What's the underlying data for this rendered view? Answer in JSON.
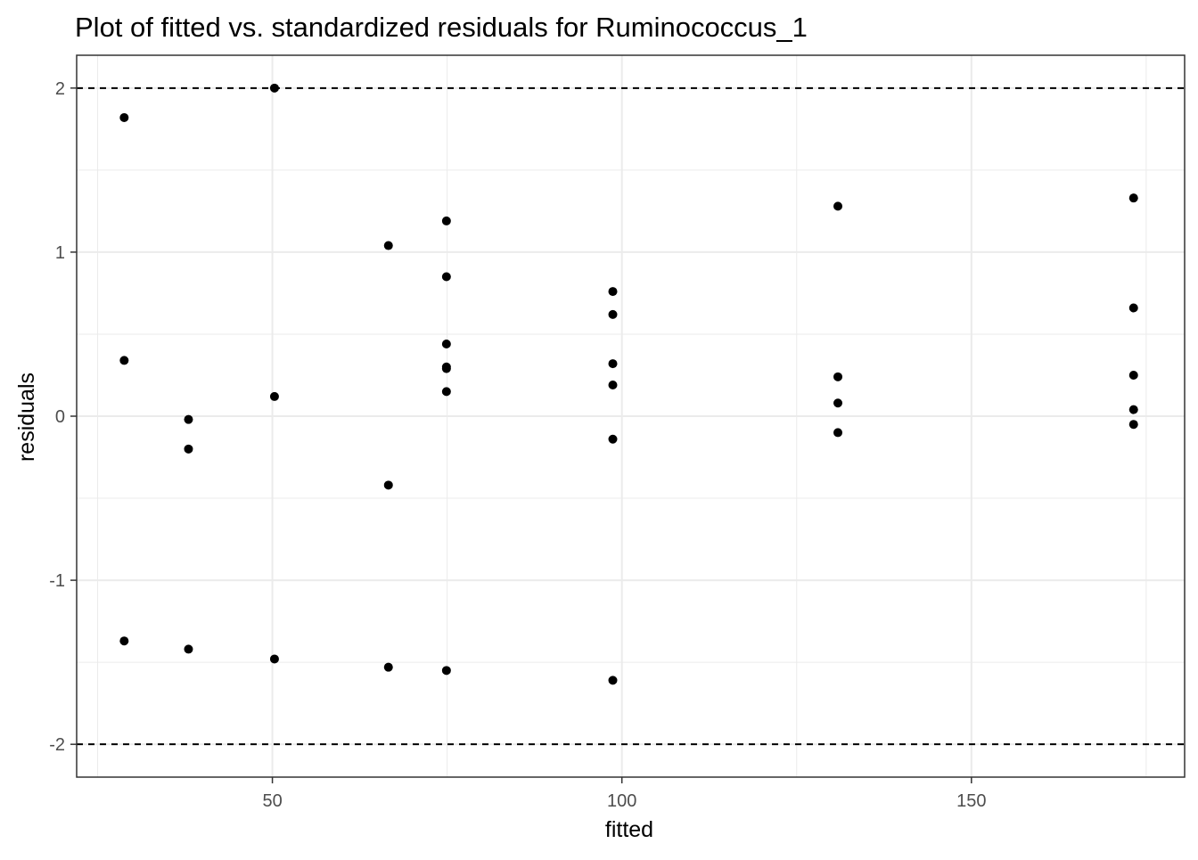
{
  "chart_data": {
    "type": "scatter",
    "title": "Plot of fitted vs. standardized residuals for Ruminococcus_1",
    "xlabel": "fitted",
    "ylabel": "residuals",
    "xlim": [
      22,
      180.5
    ],
    "ylim": [
      -2.2,
      2.2
    ],
    "xticks": [
      50,
      100,
      150
    ],
    "xtick_labels": [
      "50",
      "100",
      "150"
    ],
    "yticks": [
      -2,
      -1,
      0,
      1,
      2
    ],
    "ytick_labels": [
      "-2",
      "-1",
      "0",
      "1",
      "2"
    ],
    "reference_lines": [
      2,
      -2
    ],
    "grid": true,
    "colors": {
      "points": "#000000",
      "grid": "#ebebeb",
      "reference": "#000000",
      "panel_border": "#333333"
    },
    "points": [
      {
        "x": 28.8,
        "y": 1.82
      },
      {
        "x": 28.8,
        "y": 0.34
      },
      {
        "x": 28.8,
        "y": -1.37
      },
      {
        "x": 38.0,
        "y": -0.02
      },
      {
        "x": 38.0,
        "y": -0.2
      },
      {
        "x": 38.0,
        "y": -1.42
      },
      {
        "x": 50.3,
        "y": 2.0
      },
      {
        "x": 50.3,
        "y": 0.12
      },
      {
        "x": 50.3,
        "y": -1.48
      },
      {
        "x": 66.6,
        "y": 1.04
      },
      {
        "x": 66.6,
        "y": -0.42
      },
      {
        "x": 66.6,
        "y": -1.53
      },
      {
        "x": 74.9,
        "y": 1.19
      },
      {
        "x": 74.9,
        "y": 0.85
      },
      {
        "x": 74.9,
        "y": 0.44
      },
      {
        "x": 74.9,
        "y": 0.3
      },
      {
        "x": 74.9,
        "y": 0.29
      },
      {
        "x": 74.9,
        "y": 0.15
      },
      {
        "x": 74.9,
        "y": -1.55
      },
      {
        "x": 98.7,
        "y": 0.76
      },
      {
        "x": 98.7,
        "y": 0.62
      },
      {
        "x": 98.7,
        "y": 0.32
      },
      {
        "x": 98.7,
        "y": 0.19
      },
      {
        "x": 98.7,
        "y": -0.14
      },
      {
        "x": 98.7,
        "y": -1.61
      },
      {
        "x": 130.9,
        "y": 1.28
      },
      {
        "x": 130.9,
        "y": 0.24
      },
      {
        "x": 130.9,
        "y": 0.08
      },
      {
        "x": 130.9,
        "y": -0.1
      },
      {
        "x": 173.2,
        "y": 1.33
      },
      {
        "x": 173.2,
        "y": 0.66
      },
      {
        "x": 173.2,
        "y": 0.25
      },
      {
        "x": 173.2,
        "y": 0.04
      },
      {
        "x": 173.2,
        "y": -0.05
      }
    ]
  }
}
